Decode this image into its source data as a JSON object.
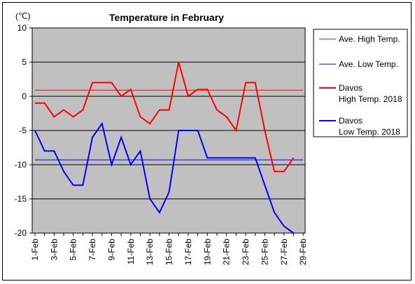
{
  "chart_data": {
    "type": "line",
    "title": "Temperature in February",
    "ylabel": "(℃)",
    "xlabel": "",
    "ylim": [
      -20,
      10
    ],
    "yticks": [
      10,
      5,
      0,
      -5,
      -10,
      -15,
      -20
    ],
    "x": [
      "1-Feb",
      "2-Feb",
      "3-Feb",
      "4-Feb",
      "5-Feb",
      "6-Feb",
      "7-Feb",
      "8-Feb",
      "9-Feb",
      "10-Feb",
      "11-Feb",
      "12-Feb",
      "13-Feb",
      "14-Feb",
      "15-Feb",
      "16-Feb",
      "17-Feb",
      "18-Feb",
      "19-Feb",
      "20-Feb",
      "21-Feb",
      "22-Feb",
      "23-Feb",
      "24-Feb",
      "25-Feb",
      "26-Feb",
      "27-Feb",
      "28-Feb",
      "29-Feb"
    ],
    "xtick_labels": [
      "1-Feb",
      "3-Feb",
      "5-Feb",
      "7-Feb",
      "9-Feb",
      "11-Feb",
      "13-Feb",
      "15-Feb",
      "17-Feb",
      "19-Feb",
      "21-Feb",
      "23-Feb",
      "25-Feb",
      "27-Feb",
      "29-Feb"
    ],
    "grid": true,
    "legend_position": "right",
    "plot_background": "#c0c0c0",
    "series": [
      {
        "name": "Ave. High Temp.",
        "color": "#ff0000",
        "style": "thin",
        "values": [
          0.9,
          0.9,
          0.9,
          0.9,
          0.9,
          0.9,
          0.9,
          0.9,
          0.9,
          0.9,
          0.9,
          0.9,
          0.9,
          0.9,
          0.9,
          0.9,
          0.9,
          0.9,
          0.9,
          0.9,
          0.9,
          0.9,
          0.9,
          0.9,
          0.9,
          0.9,
          0.9,
          0.9,
          0.9
        ]
      },
      {
        "name": "Ave. Low Temp.",
        "color": "#0000ff",
        "style": "thin",
        "values": [
          -9.3,
          -9.3,
          -9.3,
          -9.3,
          -9.3,
          -9.3,
          -9.3,
          -9.3,
          -9.3,
          -9.3,
          -9.3,
          -9.3,
          -9.3,
          -9.3,
          -9.3,
          -9.3,
          -9.3,
          -9.3,
          -9.3,
          -9.3,
          -9.3,
          -9.3,
          -9.3,
          -9.3,
          -9.3,
          -9.3,
          -9.3,
          -9.3,
          -9.3
        ]
      },
      {
        "name": "Davos High Temp. 2018",
        "legend_lines": [
          "Davos",
          "High Temp. 2018"
        ],
        "color": "#ff0000",
        "style": "thick",
        "values": [
          -1,
          -1,
          -3,
          -2,
          -3,
          -2,
          2,
          2,
          2,
          0,
          1,
          -3,
          -4,
          -2,
          -2,
          5,
          0,
          1,
          1,
          -2,
          -3,
          -5,
          2,
          2,
          -5,
          -11,
          -11,
          -9,
          null
        ]
      },
      {
        "name": "Davos Low Temp. 2018",
        "legend_lines": [
          "Davos",
          "Low Temp. 2018"
        ],
        "color": "#0000ff",
        "style": "thick",
        "values": [
          -5,
          -8,
          -8,
          -11,
          -13,
          -13,
          -6,
          -4,
          -10,
          -6,
          -10,
          -8,
          -15,
          -17,
          -14,
          -5,
          -5,
          -5,
          -9,
          -9,
          -9,
          -9,
          -9,
          -9,
          -13,
          -17,
          -19,
          -20,
          null
        ]
      }
    ]
  }
}
